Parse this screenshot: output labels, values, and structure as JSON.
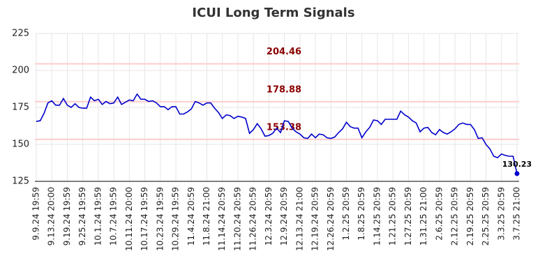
{
  "chart_data": {
    "type": "line",
    "title": "ICUI Long Term Signals",
    "categories": [
      "9.9.24 19:59",
      null,
      null,
      null,
      "9.13.24 20:00",
      null,
      null,
      null,
      "9.19.24 19:59",
      null,
      null,
      null,
      "9.25.24 19:59",
      null,
      null,
      null,
      "10.1.24 19:59",
      null,
      null,
      null,
      "10.7.24 19:59",
      null,
      null,
      null,
      "10.11.24 20:00",
      null,
      null,
      null,
      "10.17.24 19:59",
      null,
      null,
      null,
      "10.23.24 19:59",
      null,
      null,
      null,
      "10.29.24 19:59",
      null,
      null,
      null,
      "11.4.24 20:59",
      null,
      null,
      null,
      "11.8.24 21:00",
      null,
      null,
      null,
      "11.14.24 20:59",
      null,
      null,
      null,
      "11.20.24 20:59",
      null,
      null,
      null,
      "11.26.24 20:59",
      null,
      null,
      null,
      "12.3.24 20:59",
      null,
      null,
      null,
      "12.9.24 20:59",
      null,
      null,
      null,
      "12.13.24 21:00",
      null,
      null,
      null,
      "12.19.24 20:59",
      null,
      null,
      null,
      "12.26.24 20:59",
      null,
      null,
      null,
      "1.2.25 20:59",
      null,
      null,
      null,
      "1.8.25 20:59",
      null,
      null,
      null,
      "1.14.25 20:59",
      null,
      null,
      null,
      "1.21.25 20:59",
      null,
      null,
      null,
      "1.27.25 20:59",
      null,
      null,
      null,
      "1.31.25 21:00",
      null,
      null,
      null,
      "2.6.25 20:59",
      null,
      null,
      null,
      "2.12.25 20:59",
      null,
      null,
      null,
      "2.19.25 20:59",
      null,
      null,
      null,
      "2.25.25 20:59",
      null,
      null,
      null,
      "3.3.25 20:59",
      null,
      null,
      null,
      "3.7.25 21:00"
    ],
    "series": [
      {
        "color": "#0000cc",
        "values": [
          165.5,
          166,
          171,
          178,
          179.5,
          176.5,
          176.5,
          181,
          176.5,
          175,
          177.5,
          175,
          174.5,
          174.5,
          182,
          179.5,
          180.5,
          177,
          179,
          177.5,
          178,
          182,
          177,
          178.5,
          180,
          179.5,
          184,
          180.5,
          180.5,
          179,
          179.5,
          178,
          175.5,
          175.5,
          173.5,
          175.5,
          175.5,
          170.5,
          170.5,
          172,
          174,
          179,
          178,
          176.5,
          178,
          178,
          174.5,
          171.5,
          167.5,
          170,
          169.5,
          167.5,
          169,
          168.5,
          167.5,
          157.5,
          160,
          164,
          160.5,
          155.5,
          156,
          157.5,
          161,
          158,
          166,
          165.5,
          161,
          158.5,
          157,
          154.5,
          154,
          157,
          154.5,
          157,
          156.5,
          154.5,
          154,
          155,
          158,
          160.5,
          165,
          162,
          161,
          161,
          154.5,
          158.5,
          161.5,
          166.5,
          166,
          163.5,
          167,
          167,
          167,
          167,
          172.5,
          170,
          168.5,
          166,
          164.5,
          158.5,
          161,
          161.5,
          158,
          156.5,
          160,
          158,
          157,
          158.5,
          160.5,
          163.5,
          164.5,
          163.5,
          163.5,
          160,
          154,
          154.5,
          150,
          147,
          142,
          141,
          143.5,
          142.5,
          142,
          142,
          130.23
        ]
      }
    ],
    "hlines": [
      {
        "value": 204.46,
        "color": "#ffcccc",
        "label_color": "#8b0000"
      },
      {
        "value": 178.88,
        "color": "#ffcccc",
        "label_color": "#8b0000"
      },
      {
        "value": 153.38,
        "color": "#ffcccc",
        "label_color": "#8b0000"
      }
    ],
    "ylim": [
      125,
      225
    ],
    "yticks": [
      125,
      150,
      175,
      200,
      225
    ],
    "grid": true
  }
}
